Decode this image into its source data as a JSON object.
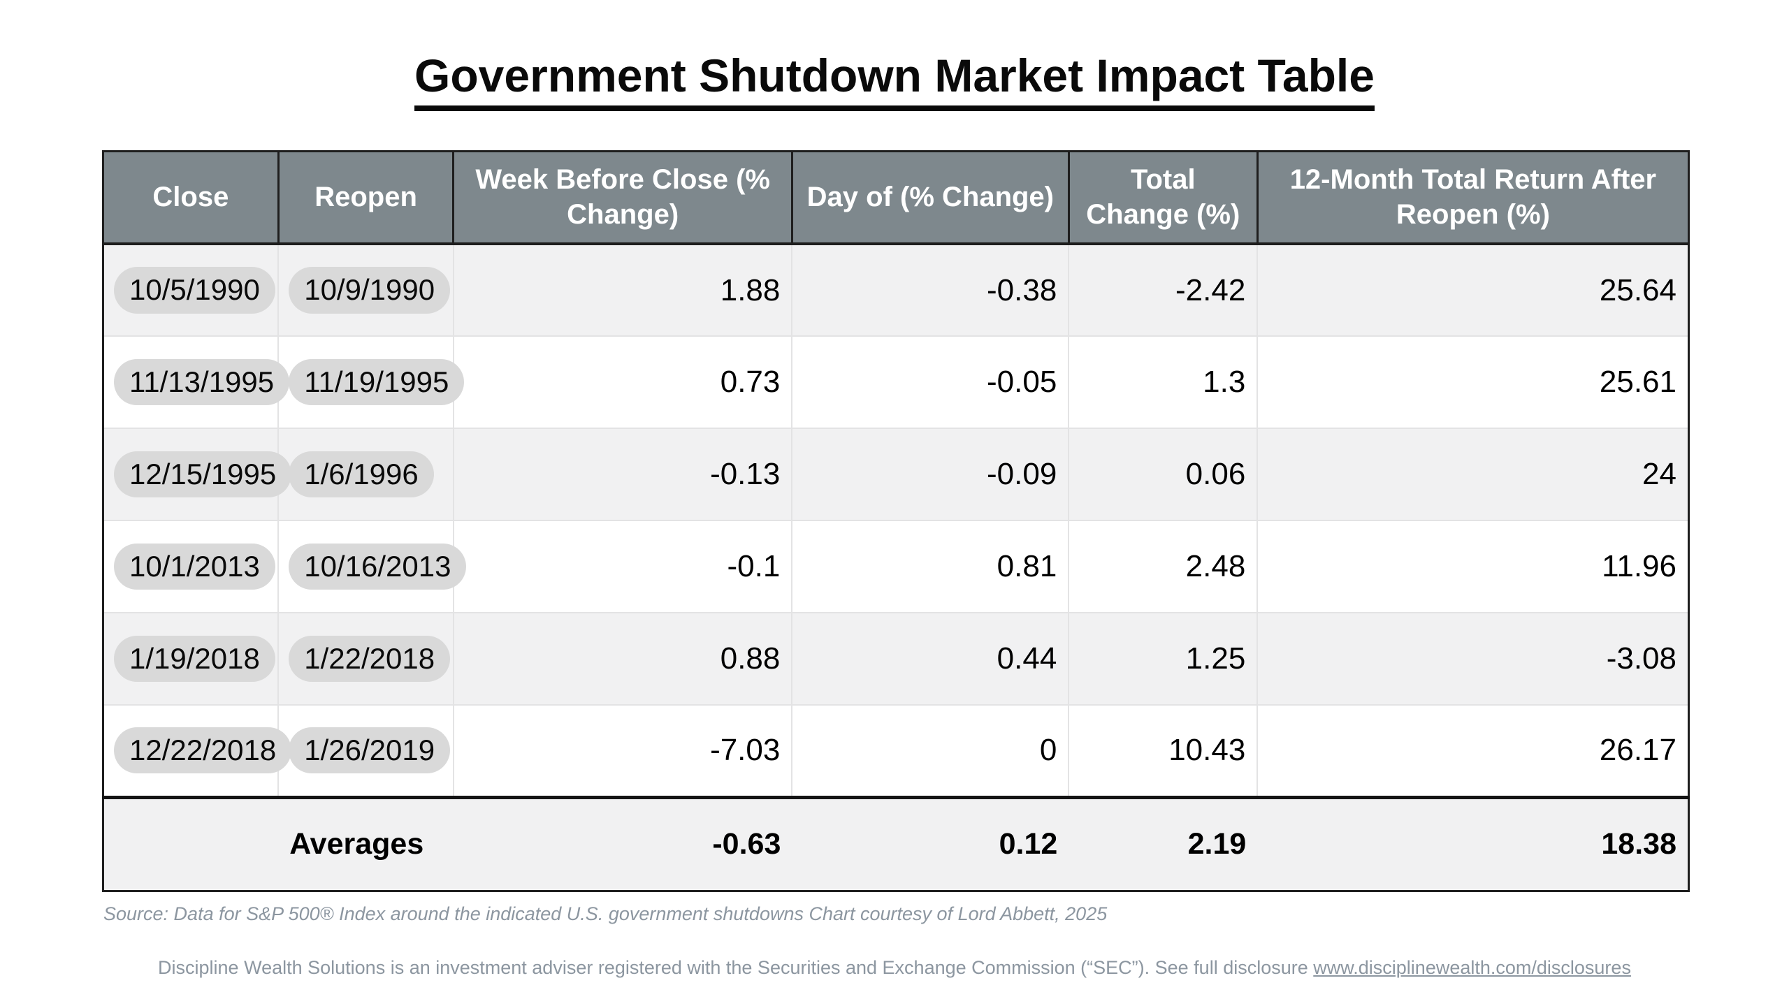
{
  "page": {
    "title": "Government Shutdown Market Impact Table"
  },
  "table": {
    "headers": [
      "Close",
      "Reopen",
      "Week Before Close (% Change)",
      "Day of (% Change)",
      "Total Change (%)",
      "12-Month Total Return After Reopen (%)"
    ],
    "rows": [
      {
        "close": "10/5/1990",
        "reopen": "10/9/1990",
        "week_before": "1.88",
        "day_of": "-0.38",
        "total_change": "-2.42",
        "return_12m": "25.64"
      },
      {
        "close": "11/13/1995",
        "reopen": "11/19/1995",
        "week_before": "0.73",
        "day_of": "-0.05",
        "total_change": "1.3",
        "return_12m": "25.61"
      },
      {
        "close": "12/15/1995",
        "reopen": "1/6/1996",
        "week_before": "-0.13",
        "day_of": "-0.09",
        "total_change": "0.06",
        "return_12m": "24"
      },
      {
        "close": "10/1/2013",
        "reopen": "10/16/2013",
        "week_before": "-0.1",
        "day_of": "0.81",
        "total_change": "2.48",
        "return_12m": "11.96"
      },
      {
        "close": "1/19/2018",
        "reopen": "1/22/2018",
        "week_before": "0.88",
        "day_of": "0.44",
        "total_change": "1.25",
        "return_12m": "-3.08"
      },
      {
        "close": "12/22/2018",
        "reopen": "1/26/2019",
        "week_before": "-7.03",
        "day_of": "0",
        "total_change": "10.43",
        "return_12m": "26.17"
      }
    ],
    "averages": {
      "label": "Averages",
      "week_before": "-0.63",
      "day_of": "0.12",
      "total_change": "2.19",
      "return_12m": "18.38"
    }
  },
  "footer": {
    "source": "Source: Data for S&P 500® Index around the indicated U.S. government shutdowns  Chart courtesy of Lord Abbett, 2025",
    "disclosure_text": "Discipline Wealth Solutions is an investment adviser registered with the Securities and Exchange Commission (“SEC”). See full disclosure ",
    "disclosure_link": "www.disciplinewealth.com/disclosures"
  },
  "colors": {
    "header_bg": "#7E888D",
    "header_text": "#FFFFFF",
    "row_alt_bg": "#F1F1F2",
    "row_bg": "#FFFFFF",
    "pill_bg": "#D9D9D9",
    "border_dark": "#1E1E1E",
    "border_light": "#E3E3E4",
    "footer_text": "#8C96A0"
  },
  "chart_data": {
    "type": "table",
    "title": "Government Shutdown Market Impact Table",
    "columns": [
      "Close",
      "Reopen",
      "Week Before Close (% Change)",
      "Day of (% Change)",
      "Total Change (%)",
      "12-Month Total Return After Reopen (%)"
    ],
    "rows": [
      [
        "10/5/1990",
        "10/9/1990",
        1.88,
        -0.38,
        -2.42,
        25.64
      ],
      [
        "11/13/1995",
        "11/19/1995",
        0.73,
        -0.05,
        1.3,
        25.61
      ],
      [
        "12/15/1995",
        "1/6/1996",
        -0.13,
        -0.09,
        0.06,
        24
      ],
      [
        "10/1/2013",
        "10/16/2013",
        -0.1,
        0.81,
        2.48,
        11.96
      ],
      [
        "1/19/2018",
        "1/22/2018",
        0.88,
        0.44,
        1.25,
        -3.08
      ],
      [
        "12/22/2018",
        "1/26/2019",
        -7.03,
        0,
        10.43,
        26.17
      ]
    ],
    "averages_row": [
      "",
      "Averages",
      -0.63,
      0.12,
      2.19,
      18.38
    ],
    "source": "Source: Data for S&P 500® Index around the indicated U.S. government shutdowns  Chart courtesy of Lord Abbett, 2025"
  }
}
